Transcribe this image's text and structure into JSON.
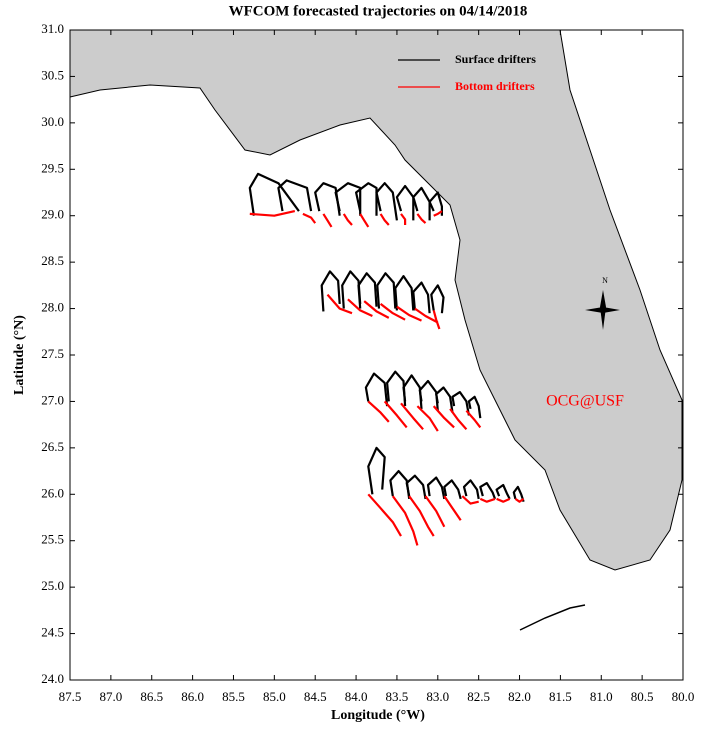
{
  "chart_data": {
    "type": "trajectory",
    "title": "WFCOM forecasted trajectories on 04/14/2018",
    "x_label": "Longitude (°W)",
    "y_label": "Latitude (°N)",
    "annotation": "OCG@USF",
    "compass_label": "N",
    "xlim": [
      87.5,
      80.0
    ],
    "ylim": [
      24.0,
      31.0
    ],
    "xticks": [
      87.5,
      {
        "value": 87,
        "label": "87.0"
      },
      86.5,
      {
        "value": 86,
        "label": "86.0"
      },
      85.5,
      {
        "value": 85,
        "label": "85.0"
      },
      84.5,
      {
        "value": 84,
        "label": "84.0"
      },
      83.5,
      {
        "value": 83,
        "label": "83.0"
      },
      82.5,
      {
        "value": 82,
        "label": "82.0"
      },
      81.5,
      {
        "value": 81,
        "label": "81.0"
      },
      80.5,
      {
        "value": 80,
        "label": "80.0"
      }
    ],
    "yticks": [
      {
        "value": 24,
        "label": "24.0"
      },
      24.5,
      {
        "value": 25,
        "label": "25.0"
      },
      25.5,
      {
        "value": 26,
        "label": "26.0"
      },
      26.5,
      {
        "value": 27,
        "label": "27.0"
      },
      27.5,
      {
        "value": 28,
        "label": "28.0"
      },
      28.5,
      {
        "value": 29,
        "label": "29.0"
      },
      29.5,
      {
        "value": 30,
        "label": "30.0"
      },
      30.5,
      {
        "value": 31,
        "label": "31.0"
      }
    ],
    "series": [
      {
        "name": "Surface drifters",
        "color": "#000000",
        "tracks": [
          {
            "x": [
              85.25,
              85.3,
              85.2,
              84.95,
              84.7
            ],
            "y": [
              29.0,
              29.3,
              29.45,
              29.35,
              29.05
            ]
          },
          {
            "x": [
              84.9,
              84.95,
              84.85,
              84.6,
              84.55
            ],
            "y": [
              29.05,
              29.3,
              29.38,
              29.3,
              29.05
            ]
          },
          {
            "x": [
              84.45,
              84.5,
              84.4,
              84.25,
              84.2
            ],
            "y": [
              29.05,
              29.25,
              29.35,
              29.3,
              29.0
            ]
          },
          {
            "x": [
              84.2,
              84.25,
              84.1,
              83.95,
              83.95
            ],
            "y": [
              29.05,
              29.25,
              29.35,
              29.3,
              29.0
            ]
          },
          {
            "x": [
              83.95,
              84.0,
              83.85,
              83.75,
              83.75
            ],
            "y": [
              29.05,
              29.25,
              29.35,
              29.3,
              29.0
            ]
          },
          {
            "x": [
              83.7,
              83.75,
              83.65,
              83.55,
              83.5
            ],
            "y": [
              29.05,
              29.25,
              29.35,
              29.25,
              28.95
            ]
          },
          {
            "x": [
              83.45,
              83.5,
              83.4,
              83.3,
              83.3
            ],
            "y": [
              29.05,
              29.2,
              29.32,
              29.2,
              28.95
            ]
          },
          {
            "x": [
              83.25,
              83.3,
              83.2,
              83.1,
              83.1
            ],
            "y": [
              29.05,
              29.2,
              29.3,
              29.15,
              28.95
            ]
          },
          {
            "x": [
              83.05,
              83.1,
              83.0,
              82.95,
              82.95
            ],
            "y": [
              29.05,
              29.15,
              29.25,
              29.1,
              29.0
            ]
          },
          {
            "x": [
              84.4,
              84.42,
              84.32,
              84.22,
              84.2
            ],
            "y": [
              27.97,
              28.25,
              28.4,
              28.3,
              28.05
            ]
          },
          {
            "x": [
              84.15,
              84.17,
              84.07,
              83.97,
              83.95
            ],
            "y": [
              28.0,
              28.25,
              28.4,
              28.3,
              28.05
            ]
          },
          {
            "x": [
              83.95,
              83.97,
              83.87,
              83.77,
              83.75
            ],
            "y": [
              28.0,
              28.25,
              28.38,
              28.28,
              28.02
            ]
          },
          {
            "x": [
              83.72,
              83.74,
              83.64,
              83.54,
              83.52
            ],
            "y": [
              28.0,
              28.25,
              28.38,
              28.28,
              28.0
            ]
          },
          {
            "x": [
              83.5,
              83.52,
              83.42,
              83.32,
              83.3
            ],
            "y": [
              27.98,
              28.22,
              28.35,
              28.22,
              27.98
            ]
          },
          {
            "x": [
              83.28,
              83.3,
              83.2,
              83.12,
              83.1
            ],
            "y": [
              27.98,
              28.18,
              28.28,
              28.15,
              27.95
            ]
          },
          {
            "x": [
              83.05,
              83.08,
              83.0,
              82.93,
              82.95
            ],
            "y": [
              27.98,
              28.15,
              28.25,
              28.12,
              27.95
            ]
          },
          {
            "x": [
              83.85,
              83.88,
              83.78,
              83.65,
              83.62
            ],
            "y": [
              27.0,
              27.15,
              27.3,
              27.2,
              26.95
            ]
          },
          {
            "x": [
              83.6,
              83.62,
              83.52,
              83.42,
              83.4
            ],
            "y": [
              27.0,
              27.2,
              27.32,
              27.22,
              26.95
            ]
          },
          {
            "x": [
              83.4,
              83.42,
              83.32,
              83.22,
              83.2
            ],
            "y": [
              27.0,
              27.15,
              27.28,
              27.15,
              26.92
            ]
          },
          {
            "x": [
              83.2,
              83.22,
              83.12,
              83.02,
              83.0
            ],
            "y": [
              27.0,
              27.12,
              27.22,
              27.1,
              26.9
            ]
          },
          {
            "x": [
              83.0,
              83.02,
              82.93,
              82.85,
              82.82
            ],
            "y": [
              26.98,
              27.08,
              27.15,
              27.05,
              26.88
            ]
          },
          {
            "x": [
              82.8,
              82.82,
              82.73,
              82.65,
              82.62
            ],
            "y": [
              26.95,
              27.05,
              27.1,
              27.0,
              26.85
            ]
          },
          {
            "x": [
              82.6,
              82.62,
              82.55,
              82.5,
              82.48
            ],
            "y": [
              26.92,
              27.0,
              27.05,
              26.95,
              26.82
            ]
          },
          {
            "x": [
              83.8,
              83.85,
              83.75,
              83.65,
              83.68
            ],
            "y": [
              26.0,
              26.3,
              26.5,
              26.4,
              26.05
            ]
          },
          {
            "x": [
              83.55,
              83.58,
              83.48,
              83.38,
              83.35
            ],
            "y": [
              25.98,
              26.15,
              26.25,
              26.15,
              25.95
            ]
          },
          {
            "x": [
              83.35,
              83.38,
              83.28,
              83.18,
              83.15
            ],
            "y": [
              25.98,
              26.12,
              26.2,
              26.1,
              25.95
            ]
          },
          {
            "x": [
              83.1,
              83.12,
              83.02,
              82.95,
              82.92
            ],
            "y": [
              25.98,
              26.1,
              26.18,
              26.08,
              25.95
            ]
          },
          {
            "x": [
              82.9,
              82.92,
              82.83,
              82.75,
              82.72
            ],
            "y": [
              25.98,
              26.08,
              26.15,
              26.05,
              25.95
            ]
          },
          {
            "x": [
              82.65,
              82.68,
              82.6,
              82.52,
              82.5
            ],
            "y": [
              25.98,
              26.08,
              26.15,
              26.05,
              25.95
            ]
          },
          {
            "x": [
              82.45,
              82.48,
              82.4,
              82.33,
              82.3
            ],
            "y": [
              25.98,
              26.08,
              26.12,
              26.02,
              25.95
            ]
          },
          {
            "x": [
              82.25,
              82.28,
              82.2,
              82.15,
              82.12
            ],
            "y": [
              25.98,
              26.05,
              26.1,
              26.0,
              25.95
            ]
          },
          {
            "x": [
              82.05,
              82.07,
              82.02,
              81.98,
              81.95
            ],
            "y": [
              25.95,
              26.02,
              26.08,
              26.0,
              25.92
            ]
          }
        ]
      },
      {
        "name": "Bottom drifters",
        "color": "#ff0000",
        "tracks": [
          {
            "x": [
              85.3,
              85.0,
              84.75
            ],
            "y": [
              29.02,
              29.0,
              29.05
            ]
          },
          {
            "x": [
              84.65,
              84.55,
              84.5
            ],
            "y": [
              29.02,
              28.98,
              28.92
            ]
          },
          {
            "x": [
              84.4,
              84.35,
              84.3
            ],
            "y": [
              29.02,
              28.95,
              28.88
            ]
          },
          {
            "x": [
              84.15,
              84.1,
              84.05
            ],
            "y": [
              29.02,
              28.95,
              28.9
            ]
          },
          {
            "x": [
              83.95,
              83.9,
              83.85
            ],
            "y": [
              29.02,
              28.95,
              28.88
            ]
          },
          {
            "x": [
              83.7,
              83.65,
              83.6
            ],
            "y": [
              29.02,
              28.95,
              28.9
            ]
          },
          {
            "x": [
              83.45,
              83.4,
              83.4
            ],
            "y": [
              29.02,
              28.96,
              28.9
            ]
          },
          {
            "x": [
              83.25,
              83.2,
              83.15
            ],
            "y": [
              29.02,
              28.96,
              28.92
            ]
          },
          {
            "x": [
              83.05,
              83.0,
              82.95
            ],
            "y": [
              29.0,
              29.02,
              29.05
            ]
          },
          {
            "x": [
              84.35,
              84.2,
              84.05
            ],
            "y": [
              28.15,
              28.0,
              27.95
            ]
          },
          {
            "x": [
              84.1,
              83.95,
              83.8
            ],
            "y": [
              28.1,
              27.98,
              27.92
            ]
          },
          {
            "x": [
              83.9,
              83.75,
              83.6
            ],
            "y": [
              28.08,
              27.97,
              27.9
            ]
          },
          {
            "x": [
              83.7,
              83.55,
              83.4
            ],
            "y": [
              28.05,
              27.95,
              27.88
            ]
          },
          {
            "x": [
              83.5,
              83.35,
              83.2
            ],
            "y": [
              28.02,
              27.93,
              27.87
            ]
          },
          {
            "x": [
              83.28,
              83.15,
              83.0
            ],
            "y": [
              28.0,
              27.92,
              27.85
            ]
          },
          {
            "x": [
              83.05,
              83.02,
              82.98
            ],
            "y": [
              27.98,
              27.88,
              27.78
            ]
          },
          {
            "x": [
              83.85,
              83.7,
              83.6
            ],
            "y": [
              27.0,
              26.88,
              26.78
            ]
          },
          {
            "x": [
              83.65,
              83.5,
              83.38
            ],
            "y": [
              27.0,
              26.85,
              26.72
            ]
          },
          {
            "x": [
              83.45,
              83.3,
              83.18
            ],
            "y": [
              26.98,
              26.82,
              26.7
            ]
          },
          {
            "x": [
              83.25,
              83.1,
              83.0
            ],
            "y": [
              26.95,
              26.82,
              26.68
            ]
          },
          {
            "x": [
              83.05,
              82.92,
              82.8
            ],
            "y": [
              26.95,
              26.82,
              26.72
            ]
          },
          {
            "x": [
              82.85,
              82.75,
              82.65
            ],
            "y": [
              26.92,
              26.8,
              26.7
            ]
          },
          {
            "x": [
              82.65,
              82.55,
              82.48
            ],
            "y": [
              26.9,
              26.8,
              26.72
            ]
          },
          {
            "x": [
              83.85,
              83.7,
              83.55,
              83.45
            ],
            "y": [
              26.0,
              25.85,
              25.7,
              25.55
            ]
          },
          {
            "x": [
              83.55,
              83.4,
              83.3,
              83.25
            ],
            "y": [
              25.98,
              25.8,
              25.6,
              25.45
            ]
          },
          {
            "x": [
              83.35,
              83.22,
              83.12,
              83.05
            ],
            "y": [
              25.98,
              25.82,
              25.65,
              25.55
            ]
          },
          {
            "x": [
              83.15,
              83.02,
              82.92
            ],
            "y": [
              25.98,
              25.82,
              25.65
            ]
          },
          {
            "x": [
              82.92,
              82.82,
              82.72
            ],
            "y": [
              25.98,
              25.85,
              25.72
            ]
          },
          {
            "x": [
              82.7,
              82.6,
              82.5
            ],
            "y": [
              25.98,
              25.9,
              25.92
            ]
          },
          {
            "x": [
              82.48,
              82.4,
              82.3
            ],
            "y": [
              25.95,
              25.92,
              25.95
            ]
          },
          {
            "x": [
              82.28,
              82.2,
              82.12
            ],
            "y": [
              25.95,
              25.92,
              25.95
            ]
          },
          {
            "x": [
              82.05,
              82.0,
              81.95
            ],
            "y": [
              25.95,
              25.92,
              25.95
            ]
          }
        ]
      }
    ]
  }
}
